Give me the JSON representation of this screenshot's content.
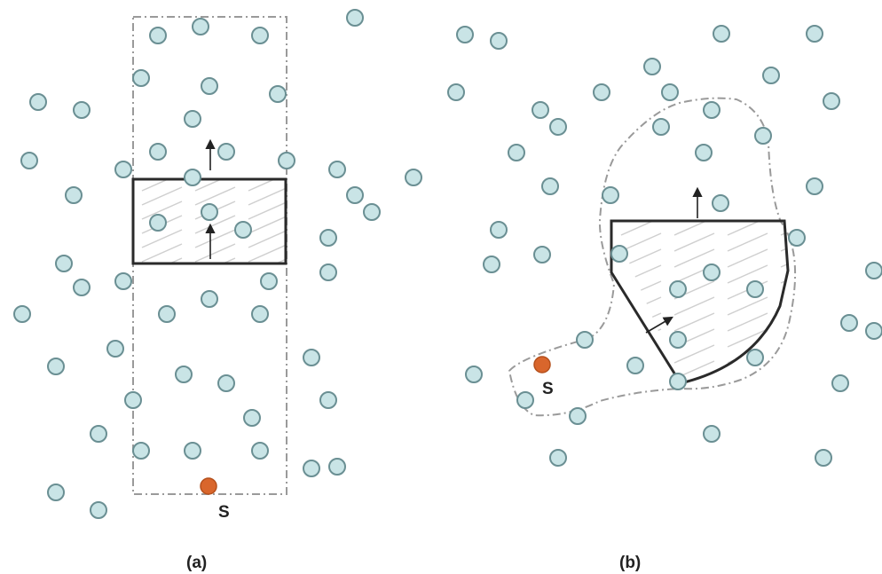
{
  "panels": [
    {
      "caption": "(a)",
      "source_label": "S"
    },
    {
      "caption": "(b)",
      "source_label": "S"
    }
  ],
  "colors": {
    "node_fill": "#c9e4e6",
    "node_stroke": "#6a8f93",
    "source_fill": "#d9662c",
    "zone_stroke": "#9a9a9a",
    "window_stroke": "#2a2a2a"
  }
}
